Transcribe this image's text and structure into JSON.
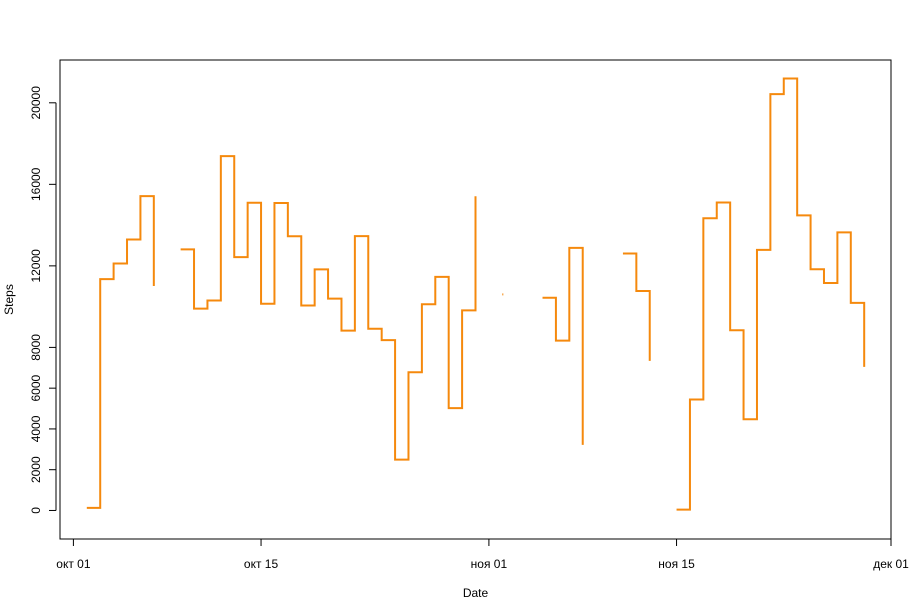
{
  "chart_data": {
    "type": "line",
    "step": true,
    "title": "",
    "xlabel": "Date",
    "ylabel": "Steps",
    "xlim": [
      "2012-09-30",
      "2012-12-01"
    ],
    "ylim": [
      -1400,
      22100
    ],
    "x_ticks": [
      {
        "date": "2012-10-01",
        "label": "окт 01"
      },
      {
        "date": "2012-10-15",
        "label": "окт 15"
      },
      {
        "date": "2012-11-01",
        "label": "ноя 01"
      },
      {
        "date": "2012-11-15",
        "label": "ноя 15"
      },
      {
        "date": "2012-12-01",
        "label": "дек 01"
      }
    ],
    "y_ticks": [
      0,
      2000,
      4000,
      6000,
      8000,
      12000,
      16000,
      20000
    ],
    "line_color": "#F5890D",
    "series": [
      {
        "x": [
          "2012-10-02",
          "2012-10-03",
          "2012-10-04",
          "2012-10-05",
          "2012-10-06",
          "2012-10-07",
          "2012-10-08",
          "2012-10-09",
          "2012-10-10",
          "2012-10-11",
          "2012-10-12",
          "2012-10-13",
          "2012-10-14",
          "2012-10-15",
          "2012-10-16",
          "2012-10-17",
          "2012-10-18",
          "2012-10-19",
          "2012-10-20",
          "2012-10-21",
          "2012-10-22",
          "2012-10-23",
          "2012-10-24",
          "2012-10-25",
          "2012-10-26",
          "2012-10-27",
          "2012-10-28",
          "2012-10-29",
          "2012-10-30",
          "2012-10-31",
          "2012-11-01",
          "2012-11-02",
          "2012-11-03",
          "2012-11-04",
          "2012-11-05",
          "2012-11-06",
          "2012-11-07",
          "2012-11-08",
          "2012-11-09",
          "2012-11-10",
          "2012-11-11",
          "2012-11-12",
          "2012-11-13",
          "2012-11-14",
          "2012-11-15",
          "2012-11-16",
          "2012-11-17",
          "2012-11-18",
          "2012-11-19",
          "2012-11-20",
          "2012-11-21",
          "2012-11-22",
          "2012-11-23",
          "2012-11-24",
          "2012-11-25",
          "2012-11-26",
          "2012-11-27",
          "2012-11-28",
          "2012-11-29",
          "2012-11-30"
        ],
        "y": [
          126,
          11352,
          12116,
          13294,
          15420,
          11015,
          null,
          12811,
          9900,
          10304,
          17382,
          12426,
          15098,
          10139,
          15084,
          13452,
          10056,
          11829,
          10395,
          8821,
          13460,
          8918,
          8355,
          2492,
          6778,
          10119,
          11458,
          5018,
          9819,
          15414,
          null,
          10600,
          null,
          null,
          10439,
          8334,
          12883,
          3219,
          null,
          null,
          12608,
          10765,
          7336,
          null,
          41,
          5441,
          14339,
          15110,
          8841,
          4472,
          12787,
          20427,
          21194,
          14478,
          11834,
          11162,
          13646,
          10183,
          7047,
          null
        ]
      }
    ]
  }
}
